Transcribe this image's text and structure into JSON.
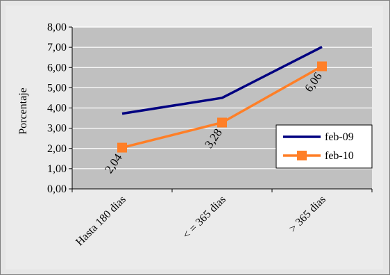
{
  "chart_data": {
    "type": "line",
    "categories": [
      "Hasta 180 dias",
      "< = 365 dias",
      "> 365 dias"
    ],
    "series": [
      {
        "name": "feb-09",
        "values": [
          3.72,
          4.5,
          7.02
        ],
        "color": "#000080",
        "marker": "none"
      },
      {
        "name": "feb-10",
        "values": [
          2.04,
          3.28,
          6.06
        ],
        "color": "#FF7F27",
        "marker": "square",
        "data_labels": [
          "2,04",
          "3,28",
          "6,06"
        ]
      }
    ],
    "ylabel": "Porcentaje",
    "ylim": [
      0,
      8
    ],
    "yticks": [
      "0,00",
      "1,00",
      "2,00",
      "3,00",
      "4,00",
      "5,00",
      "6,00",
      "7,00",
      "8,00"
    ],
    "grid": true,
    "legend": "right",
    "colors": {
      "plot_bg": "#C0C0C0",
      "outer_bg": "#E6E6E6",
      "grid": "#FFFFFF"
    }
  }
}
